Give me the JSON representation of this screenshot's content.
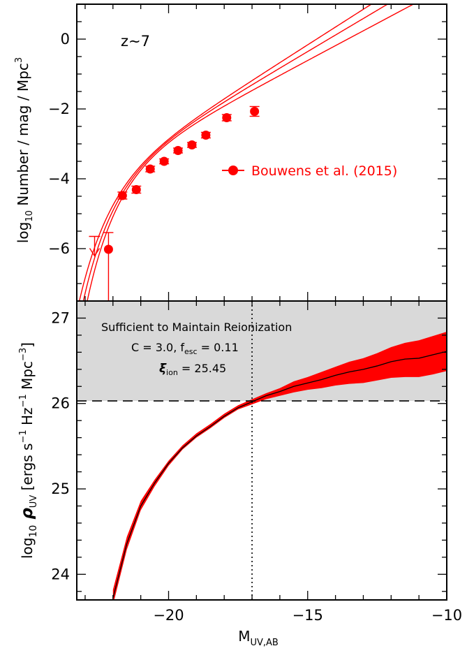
{
  "chart_data": [
    {
      "type": "line",
      "panel": "top",
      "ylabel_parts": [
        "log",
        "10",
        " Number / mag / Mpc",
        "3"
      ],
      "xlim": [
        -23.3,
        -10
      ],
      "ylim": [
        -7.5,
        1.0
      ],
      "yticks": [
        {
          "v": 0,
          "label": "0"
        },
        {
          "v": -2,
          "label": "−2"
        },
        {
          "v": -4,
          "label": "−4"
        },
        {
          "v": -6,
          "label": "−6"
        }
      ],
      "annotation": "z∼7",
      "legend": {
        "label": "Bouwens et al. (2015)",
        "placement": "right-middle"
      },
      "series_color": "#ff0000",
      "points": [
        {
          "x": -22.16,
          "y": -6.02,
          "err_lo": 1.5,
          "err_hi": 0.48
        },
        {
          "x": -21.66,
          "y": -4.48,
          "err_lo": 0.1,
          "err_hi": 0.1
        },
        {
          "x": -21.16,
          "y": -4.31,
          "err_lo": 0.1,
          "err_hi": 0.1
        },
        {
          "x": -20.66,
          "y": -3.72,
          "err_lo": 0.08,
          "err_hi": 0.08
        },
        {
          "x": -20.16,
          "y": -3.5,
          "err_lo": 0.07,
          "err_hi": 0.07
        },
        {
          "x": -19.66,
          "y": -3.19,
          "err_lo": 0.07,
          "err_hi": 0.07
        },
        {
          "x": -19.16,
          "y": -3.03,
          "err_lo": 0.07,
          "err_hi": 0.07
        },
        {
          "x": -18.66,
          "y": -2.75,
          "err_lo": 0.08,
          "err_hi": 0.08
        },
        {
          "x": -17.91,
          "y": -2.25,
          "err_lo": 0.09,
          "err_hi": 0.09
        },
        {
          "x": -16.91,
          "y": -2.07,
          "err_lo": 0.14,
          "err_hi": 0.14
        }
      ],
      "upper_limits": [
        {
          "x": -22.66,
          "y": -5.65
        }
      ],
      "fits": [
        {
          "phistar": -3.08,
          "mstar": -20.85,
          "alpha": -2.18
        },
        {
          "phistar": -3.2,
          "mstar": -21.05,
          "alpha": -2.27
        },
        {
          "phistar": -2.97,
          "mstar": -20.65,
          "alpha": -2.06
        }
      ]
    },
    {
      "type": "area",
      "panel": "bottom",
      "xlabel_parts": [
        "M",
        "UV,AB"
      ],
      "ylabel_parts": [
        "log",
        "10",
        " ρ",
        "UV",
        " [ergs s",
        "−1",
        " Hz",
        "−1",
        " Mpc",
        "−3",
        "]"
      ],
      "xlim": [
        -23.3,
        -10
      ],
      "ylim": [
        23.7,
        27.2
      ],
      "xticks": [
        {
          "v": -20,
          "label": "−20"
        },
        {
          "v": -15,
          "label": "−15"
        },
        {
          "v": -10,
          "label": "−10"
        }
      ],
      "yticks": [
        {
          "v": 24,
          "label": "24"
        },
        {
          "v": 25,
          "label": "25"
        },
        {
          "v": 26,
          "label": "26"
        },
        {
          "v": 27,
          "label": "27"
        }
      ],
      "threshold": 26.03,
      "shade_color": "#d9d9d9",
      "band_color": "#ff0000",
      "line_color": "#000000",
      "vline_x": -17,
      "annotations": {
        "line1": "Sufficient to Maintain Reionization",
        "line2_a": "C = 3.0, f",
        "line2_sub": "esc",
        "line2_b": " = 0.11",
        "line3_sym": "ξ",
        "line3_sub": "ion",
        "line3_b": " = 25.45"
      },
      "x": [
        -22.0,
        -21.5,
        -21.0,
        -20.5,
        -20.0,
        -19.5,
        -19.0,
        -18.5,
        -18.0,
        -17.5,
        -17.0,
        -16.5,
        -16.0,
        -15.5,
        -15.0,
        -14.5,
        -14.0,
        -13.5,
        -13.0,
        -12.5,
        -12.0,
        -11.5,
        -11.0,
        -10.5,
        -10.0
      ],
      "y": [
        23.72,
        24.36,
        24.8,
        25.07,
        25.3,
        25.48,
        25.62,
        25.73,
        25.85,
        25.95,
        26.02,
        26.09,
        26.14,
        26.2,
        26.24,
        26.28,
        26.33,
        26.37,
        26.4,
        26.44,
        26.49,
        26.52,
        26.53,
        26.57,
        26.61
      ],
      "y_lo": [
        23.64,
        24.29,
        24.75,
        25.03,
        25.27,
        25.46,
        25.6,
        25.71,
        25.83,
        25.93,
        25.99,
        26.05,
        26.09,
        26.13,
        26.16,
        26.18,
        26.21,
        26.23,
        26.24,
        26.27,
        26.3,
        26.31,
        26.31,
        26.34,
        26.38
      ],
      "y_hi": [
        23.82,
        24.44,
        24.86,
        25.11,
        25.33,
        25.51,
        25.65,
        25.76,
        25.88,
        25.98,
        26.05,
        26.12,
        26.18,
        26.26,
        26.31,
        26.37,
        26.43,
        26.49,
        26.53,
        26.59,
        26.66,
        26.71,
        26.74,
        26.79,
        26.84
      ]
    }
  ]
}
